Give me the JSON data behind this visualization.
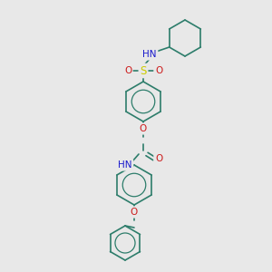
{
  "background_color": "#e8e8e8",
  "bond_color": "#2d7d6b",
  "atom_colors": {
    "N": "#1a1acc",
    "O": "#cc1a1a",
    "S": "#cccc00",
    "C": "#2d7d6b"
  },
  "figsize": [
    3.0,
    3.0
  ],
  "dpi": 100
}
